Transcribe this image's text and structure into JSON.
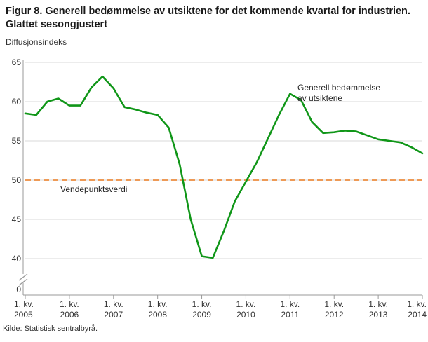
{
  "header": {
    "title": "Figur 8. Generell bedømmelse av utsiktene for det kommende kvartal for industrien. Glattet sesongjustert"
  },
  "footer": {
    "source": "Kilde: Statistisk sentralbyrå."
  },
  "chart_data": {
    "type": "line",
    "title": "Figur 8. Generell bedømmelse av utsiktene for det kommende kvartal for industrien. Glattet sesongjustert",
    "ylabel": "Diffusjonsindeks",
    "xlabel": "",
    "grid": "horizontal",
    "legend_position": "annotation-on-chart",
    "y_ticks": [
      0,
      40,
      45,
      50,
      55,
      60,
      65
    ],
    "ylim_display": [
      40,
      65
    ],
    "axis_break": true,
    "x_tick_prefix": "1. kv.",
    "x_years": [
      "2005",
      "2006",
      "2007",
      "2008",
      "2009",
      "2010",
      "2011",
      "2012",
      "2013",
      "2014"
    ],
    "x_start": "2005 Q1",
    "x_step": "quarter",
    "reference_line": {
      "value": 50,
      "label": "Vendepunktsverdi",
      "color": "#e8791e",
      "style": "dashed"
    },
    "series": [
      {
        "name": "Generell bedømmelse av utsiktene",
        "annotation_lines": [
          "Generell bedømmelse",
          "av utsiktene"
        ],
        "color": "#109618",
        "values": [
          58.5,
          58.3,
          60.0,
          60.4,
          59.5,
          59.5,
          61.8,
          63.2,
          61.7,
          59.3,
          59.0,
          58.6,
          58.3,
          56.7,
          52.0,
          45.0,
          40.3,
          40.1,
          43.5,
          47.3,
          49.8,
          52.3,
          55.3,
          58.3,
          61.0,
          60.2,
          57.4,
          56.0,
          56.1,
          56.3,
          56.2,
          55.7,
          55.2,
          55.0,
          54.8,
          54.2,
          53.4
        ]
      }
    ],
    "colors": {
      "grid": "#d9d9d9",
      "axis": "#999999",
      "tick_text": "#333333",
      "annotation_text": "#222222"
    }
  }
}
